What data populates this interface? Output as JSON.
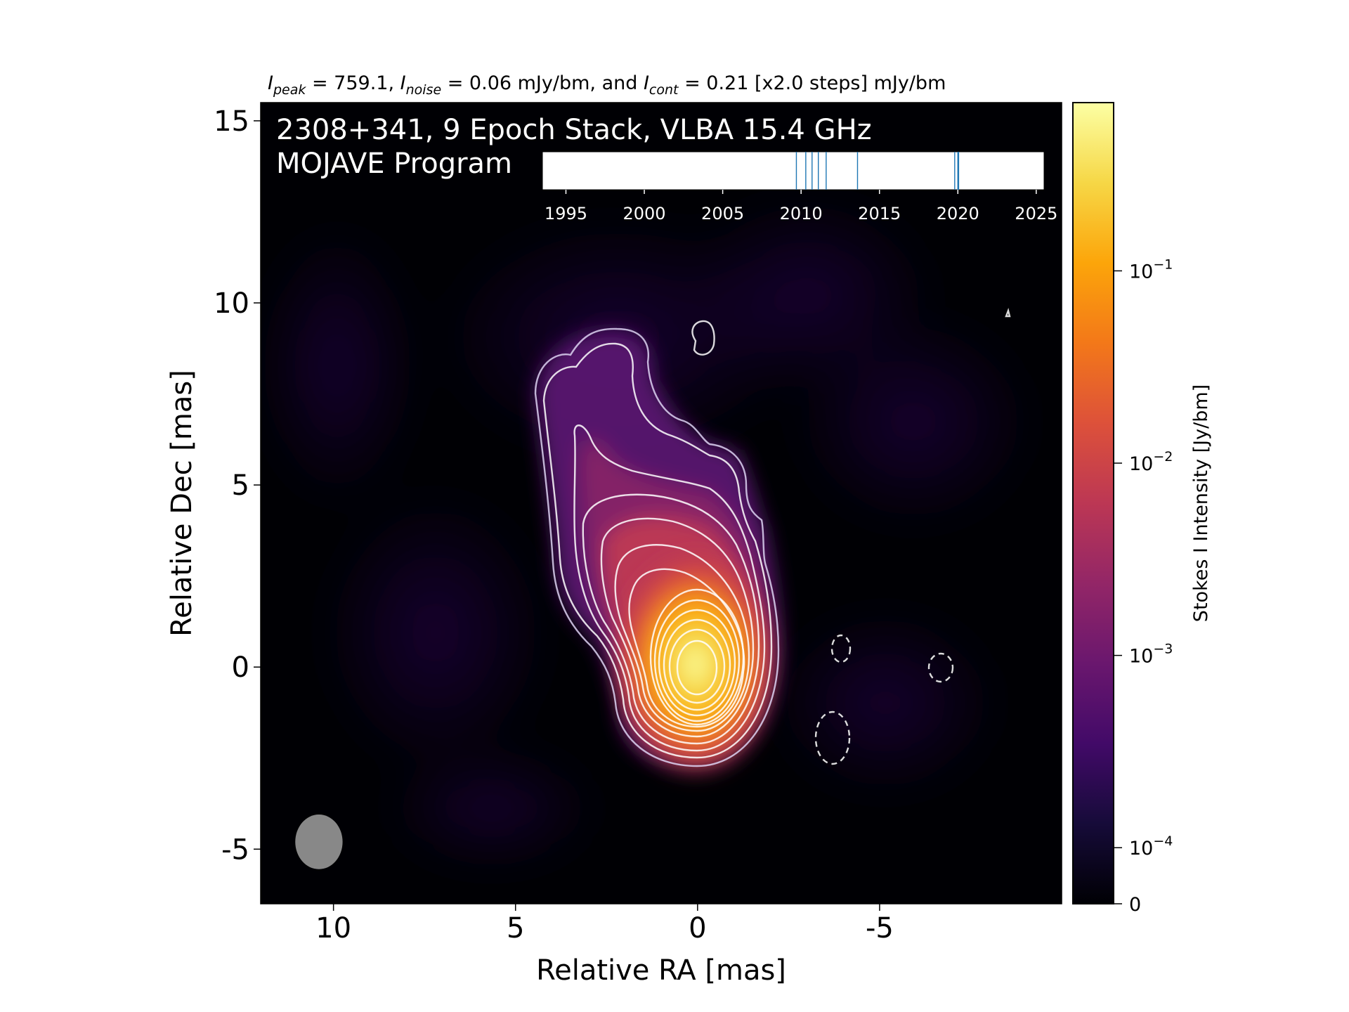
{
  "chart_data": {
    "type": "heatmap",
    "title_parts": {
      "peak_sym": "I",
      "peak_sub": "peak",
      "peak_txt": " = 759.1, ",
      "noise_sym": "I",
      "noise_sub": "noise",
      "noise_txt": " = 0.06 mJy/bm, and ",
      "cont_sym": "I",
      "cont_sub": "cont",
      "cont_txt": " = 0.21 [x2.0 steps] mJy/bm"
    },
    "annotation_line1": "2308+341, 9 Epoch Stack, VLBA 15.4 GHz",
    "annotation_line2": "MOJAVE Program",
    "xlabel": "Relative RA [mas]",
    "ylabel": "Relative Dec [mas]",
    "xlim": [
      12,
      -10
    ],
    "ylim": [
      -6.5,
      15.5
    ],
    "xticks": [
      10,
      5,
      0,
      -5
    ],
    "xtick_labels": [
      "10",
      "5",
      "0",
      "-5"
    ],
    "yticks": [
      15,
      10,
      5,
      0,
      -5
    ],
    "ytick_labels": [
      "15",
      "10",
      "5",
      "0",
      "-5"
    ],
    "colorbar": {
      "label": "Stokes I Intensity [Jy/bm]",
      "scale": "log",
      "ticks": [
        0.1,
        0.01,
        0.001,
        0.0001,
        0
      ],
      "tick_bases": [
        "10",
        "10",
        "10",
        "10",
        "0"
      ],
      "tick_exps": [
        "−1",
        "−2",
        "−3",
        "−4",
        ""
      ],
      "colormap": "inferno"
    },
    "contours": {
      "base_mjy": 0.21,
      "step_factor": 2.0,
      "levels": 13,
      "core_ra": 0,
      "core_dec": 0,
      "negative_contours": [
        {
          "ra": -3.9,
          "dec": 0.5
        },
        {
          "ra": -6.6,
          "dec": 0.0
        },
        {
          "ra": -3.7,
          "dec": -1.9
        }
      ],
      "island_contours": [
        {
          "ra": -0.2,
          "dec": 9.0
        },
        {
          "ra": -8.4,
          "dec": 9.9
        }
      ]
    },
    "beam": {
      "ra": 10.4,
      "dec": -4.8,
      "major": 1.5,
      "minor": 1.3,
      "color": "#888888"
    },
    "epochs": {
      "axis_ticks": [
        "1995",
        "2000",
        "2005",
        "2010",
        "2015",
        "2020",
        "2025"
      ],
      "range": [
        1993.5,
        2025.5
      ],
      "dates": [
        2009.7,
        2010.3,
        2010.7,
        2011.1,
        2011.6,
        2013.6,
        2019.8,
        2020.0,
        2020.05
      ],
      "line_color": "#1f77b4"
    }
  }
}
